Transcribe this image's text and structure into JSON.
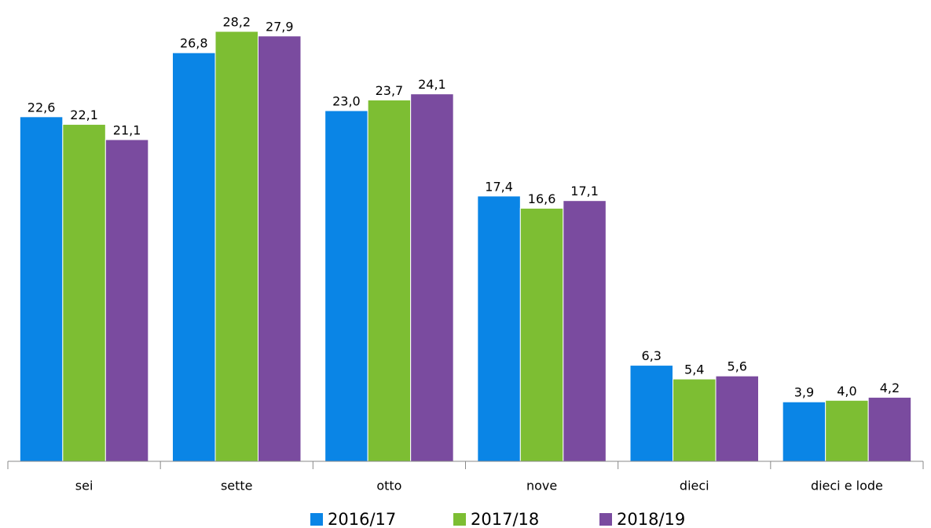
{
  "chart_data": {
    "type": "bar",
    "categories": [
      "sei",
      "sette",
      "otto",
      "nove",
      "dieci",
      "dieci e lode"
    ],
    "series": [
      {
        "name": "2016/17",
        "color": "#0a85e6",
        "values": [
          22.6,
          26.8,
          23.0,
          17.4,
          6.3,
          3.9
        ],
        "value_labels": [
          "22,6",
          "26,8",
          "23,0",
          "17,4",
          "6,3",
          "3,9"
        ]
      },
      {
        "name": "2017/18",
        "color": "#7dbe33",
        "values": [
          22.1,
          28.2,
          23.7,
          16.6,
          5.4,
          4.0
        ],
        "value_labels": [
          "22,1",
          "28,2",
          "23,7",
          "16,6",
          "5,4",
          "4,0"
        ]
      },
      {
        "name": "2018/19",
        "color": "#7a4b9f",
        "values": [
          21.1,
          27.9,
          24.1,
          17.1,
          5.6,
          4.2
        ],
        "value_labels": [
          "21,1",
          "27,9",
          "24,1",
          "17,1",
          "5,6",
          "4,2"
        ]
      }
    ],
    "legend": "bottom"
  }
}
